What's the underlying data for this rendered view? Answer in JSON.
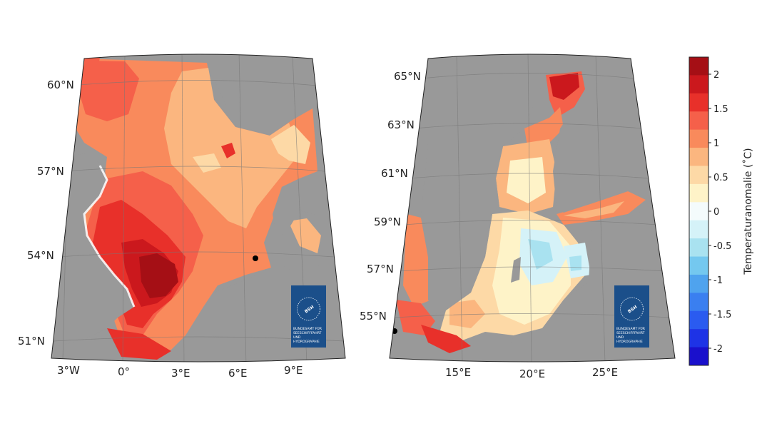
{
  "north_sea_map": {
    "lat_labels": [
      "60°N",
      "57°N",
      "54°N",
      "51°N"
    ],
    "lon_labels": [
      "3°W",
      "0°",
      "3°E",
      "6°E",
      "9°E"
    ]
  },
  "baltic_map": {
    "lat_labels": [
      "65°N",
      "63°N",
      "61°N",
      "59°N",
      "57°N",
      "55°N"
    ],
    "lon_labels": [
      "15°E",
      "20°E",
      "25°E"
    ]
  },
  "logo": {
    "abbr": "BSH",
    "lines": [
      "BUNDESAMT FÜR",
      "SEESCHIFFFAHRT",
      "UND",
      "HYDROGRAPHIE"
    ]
  },
  "colorbar": {
    "label": "Temperaturanomalie (˚C)",
    "ticks": [
      "2",
      "1.5",
      "1",
      "0.5",
      "0",
      "-0.5",
      "-1",
      "-1.5",
      "-2"
    ],
    "colors": [
      "#a50f15",
      "#cb181d",
      "#e8302a",
      "#f5604a",
      "#f98a5c",
      "#fbb67f",
      "#fdd9a6",
      "#fef3c8",
      "#f4fbfc",
      "#d5f2f8",
      "#a9e2f0",
      "#74c8ef",
      "#4fa3ee",
      "#3a7ff0",
      "#2a5bf0",
      "#1e33e6",
      "#1a10cc"
    ]
  },
  "colors": {
    "land": "#999999",
    "gridline": "#777777",
    "logo_bg": "#1b4f8a"
  }
}
